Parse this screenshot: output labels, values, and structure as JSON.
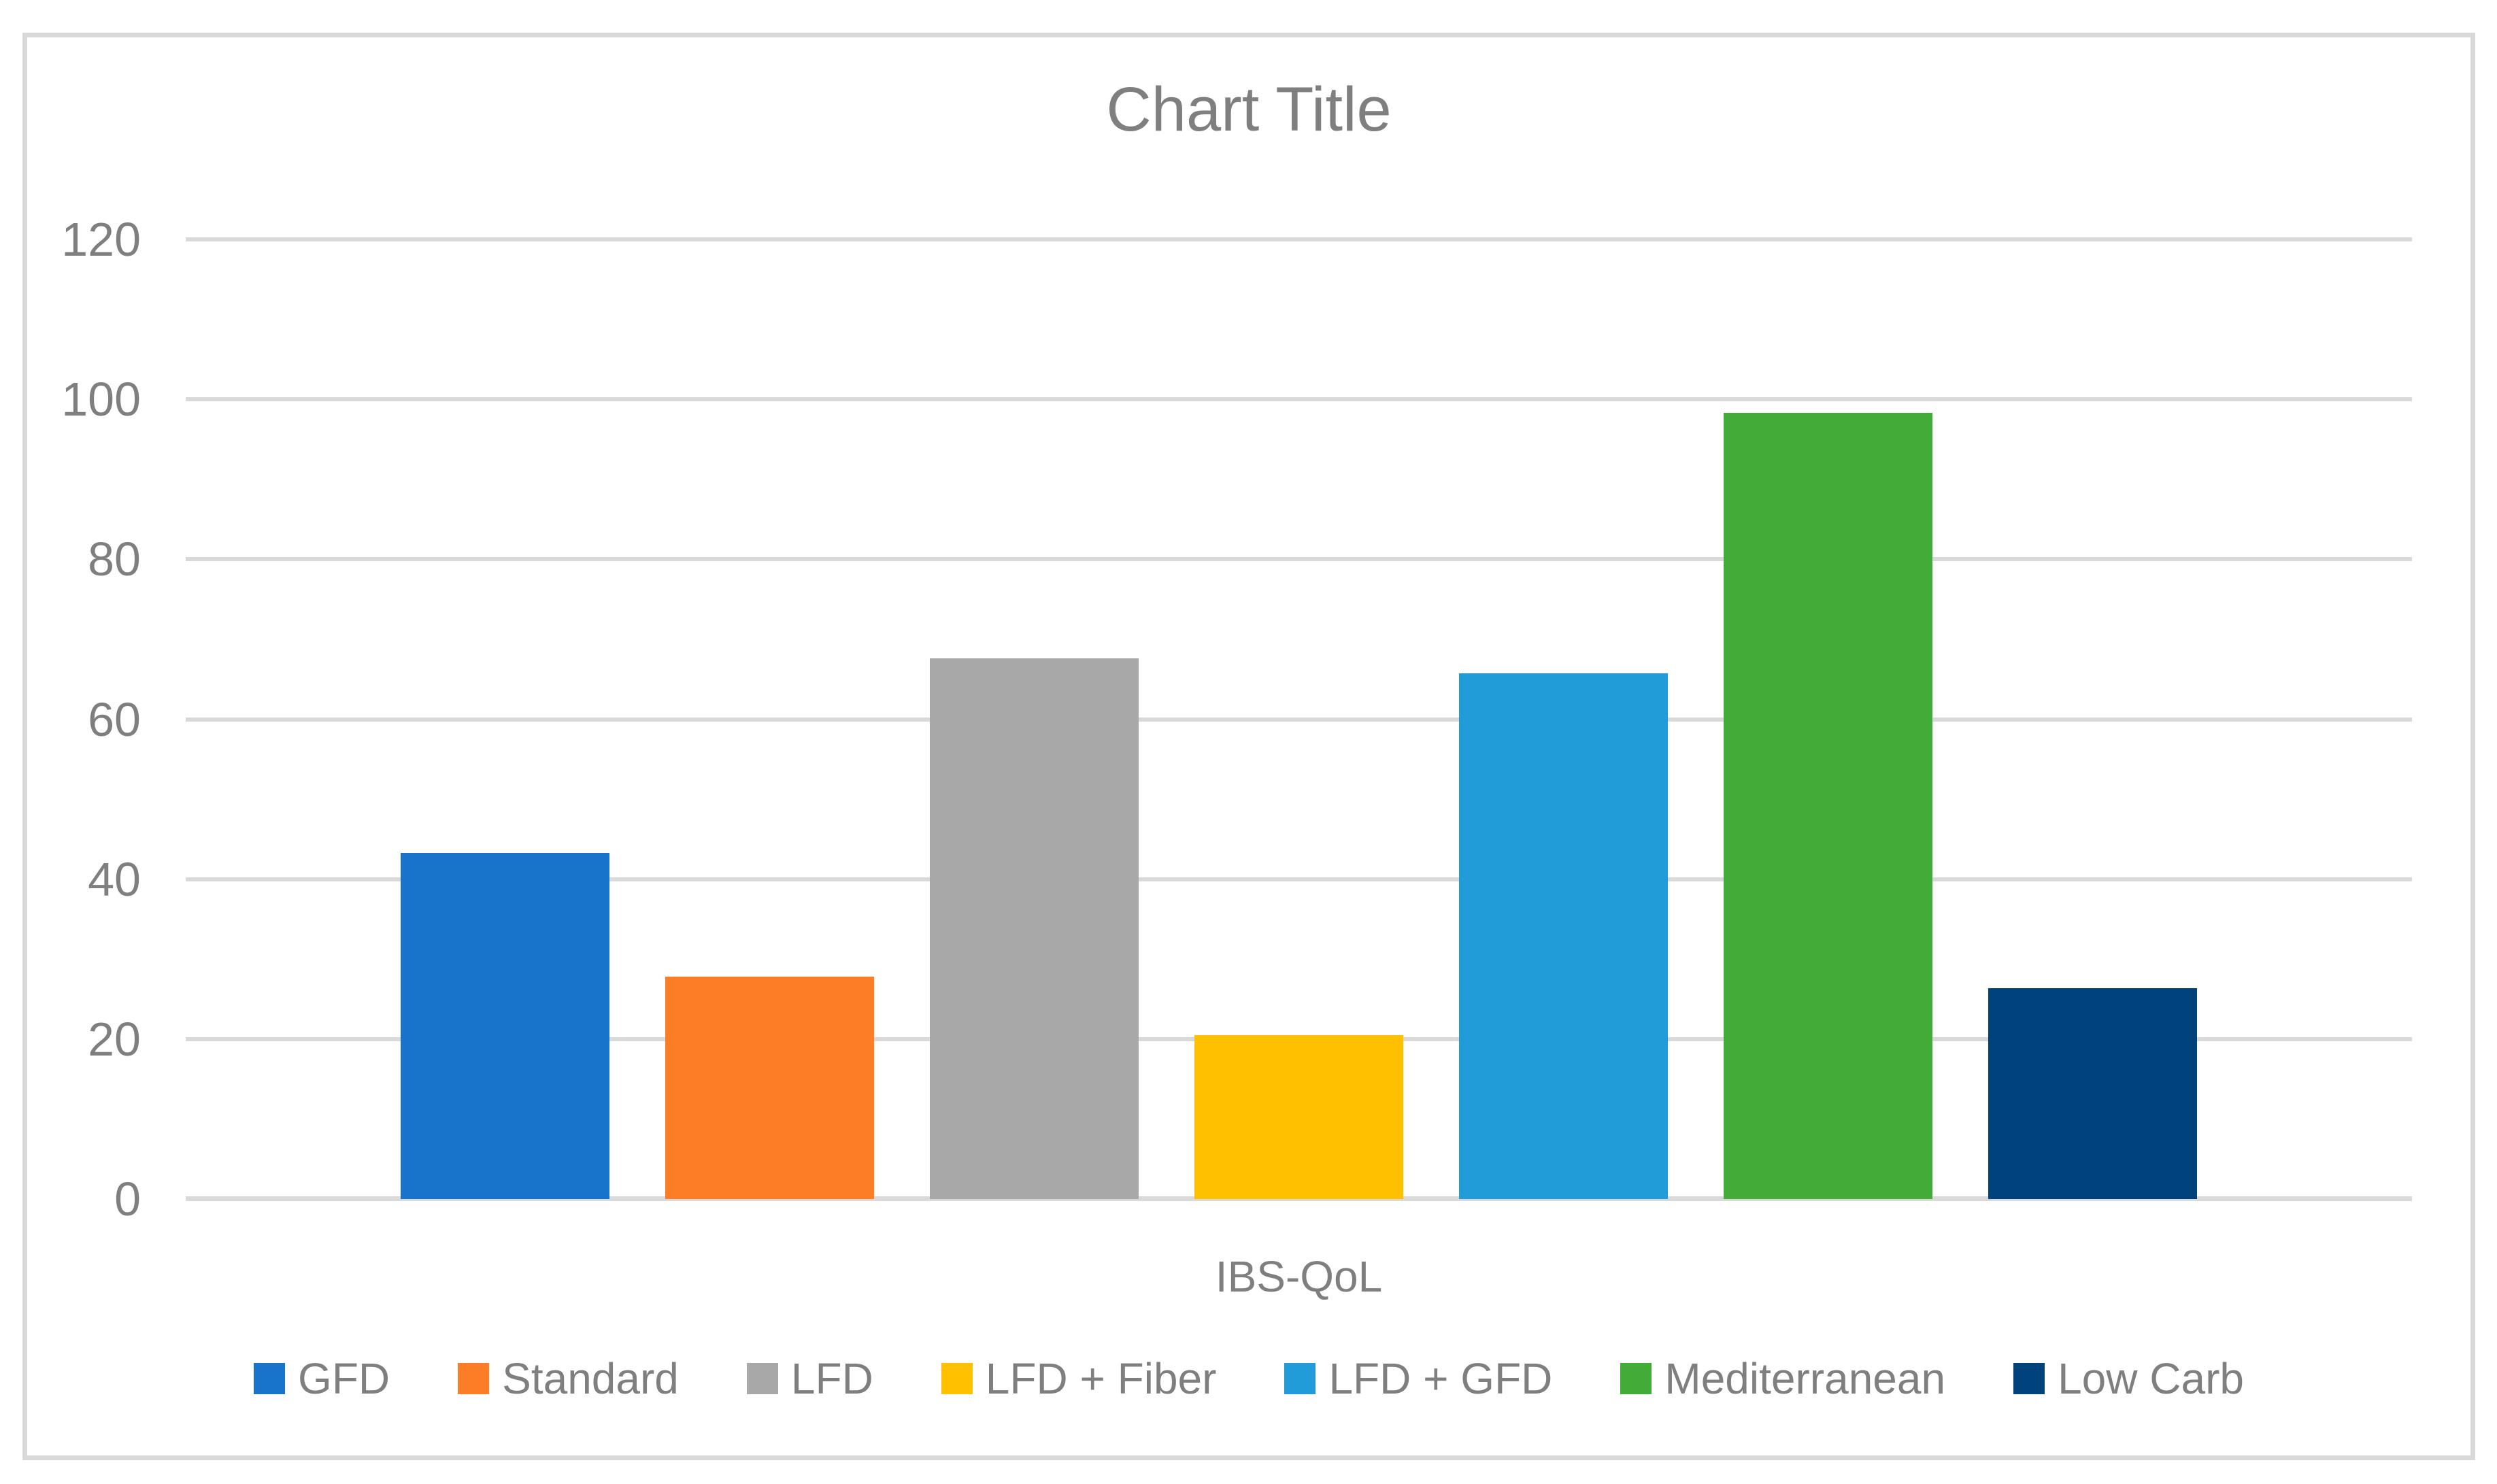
{
  "chart_data": {
    "type": "bar",
    "title": "Chart Title",
    "categories": [
      "IBS-QoL"
    ],
    "xlabel": "IBS-QoL",
    "ylabel": "",
    "ylim": [
      0,
      120
    ],
    "yticks": [
      0,
      20,
      40,
      60,
      80,
      100,
      120
    ],
    "grid": true,
    "legend_position": "bottom",
    "series": [
      {
        "name": "GFD",
        "values": [
          43.3
        ],
        "color": "#1874CA"
      },
      {
        "name": "Standard",
        "values": [
          27.8
        ],
        "color": "#FC7D26"
      },
      {
        "name": "LFD",
        "values": [
          67.6
        ],
        "color": "#A8A8A8"
      },
      {
        "name": "LFD + Fiber",
        "values": [
          20.5
        ],
        "color": "#FFC000"
      },
      {
        "name": "LFD + GFD",
        "values": [
          65.7
        ],
        "color": "#219CD9"
      },
      {
        "name": "Mediterranean",
        "values": [
          98.3
        ],
        "color": "#43AC38"
      },
      {
        "name": "Low Carb",
        "values": [
          26.4
        ],
        "color": "#00427C"
      }
    ]
  },
  "style": {
    "gridline_color": "#D9D9D9",
    "frame_border_color": "#D9D9D9",
    "text_color": "#7F7F7F",
    "background": "#FFFFFF"
  }
}
